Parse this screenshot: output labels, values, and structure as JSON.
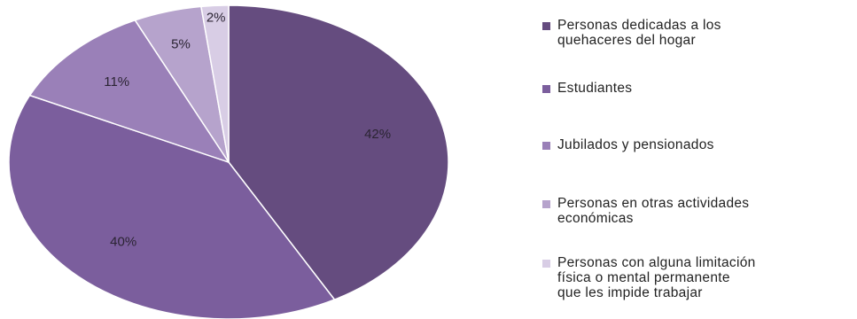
{
  "chart_data": {
    "type": "pie",
    "title": "",
    "slices": [
      {
        "label": "Personas dedicadas a los\nquehaceres del hogar",
        "value": 42,
        "value_label": "42%",
        "color": "#654c7f"
      },
      {
        "label": "Estudiantes",
        "value": 40,
        "value_label": "40%",
        "color": "#7b5e9d"
      },
      {
        "label": "Jubilados y pensionados",
        "value": 11,
        "value_label": "11%",
        "color": "#9a80b8"
      },
      {
        "label": "Personas en otras actividades\neconómicas",
        "value": 5,
        "value_label": "5%",
        "color": "#b6a3cc"
      },
      {
        "label": "Personas con alguna limitación\nfísica o mental permanente\nque les impide trabajar",
        "value": 2,
        "value_label": "2%",
        "color": "#d8cde5"
      }
    ],
    "legend_position": "right"
  }
}
